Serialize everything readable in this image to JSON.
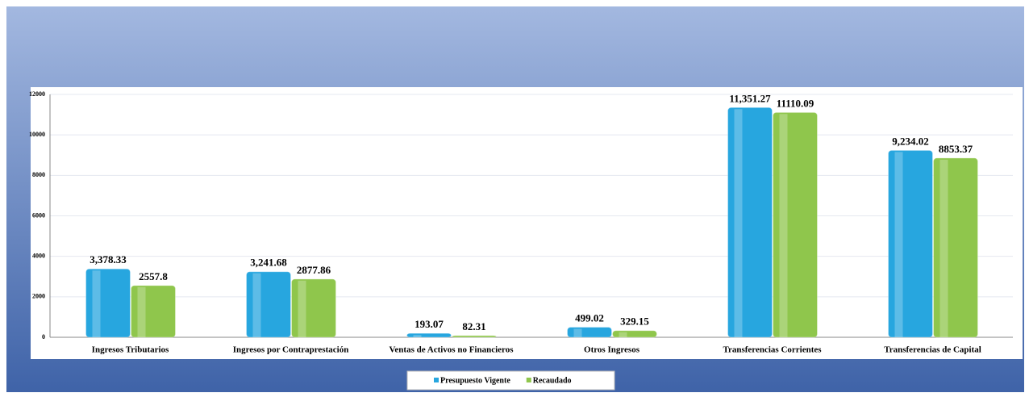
{
  "chart_data": {
    "type": "bar",
    "categories": [
      "Ingresos Tributarios",
      "Ingresos por Contraprestación",
      "Ventas de Activos no Financieros",
      "Otros Ingresos",
      "Transferencias Corrientes",
      "Transferencias de Capital"
    ],
    "series": [
      {
        "name": "Presupuesto Vigente",
        "color": "#27a6df",
        "values": [
          3378.33,
          3241.68,
          193.07,
          499.02,
          11351.27,
          9234.02
        ],
        "value_labels": [
          "3,378.33",
          "3,241.68",
          "193.07",
          "499.02",
          "11,351.27",
          "9,234.02"
        ]
      },
      {
        "name": "Recaudado",
        "color": "#8fc64c",
        "values": [
          2557.8,
          2877.86,
          82.31,
          329.15,
          11110.09,
          8853.37
        ]
      }
    ],
    "ylim": [
      0,
      12000
    ],
    "yticks": [
      0,
      2000,
      4000,
      6000,
      8000,
      10000,
      12000
    ],
    "grid": true,
    "legend": "bottom"
  }
}
